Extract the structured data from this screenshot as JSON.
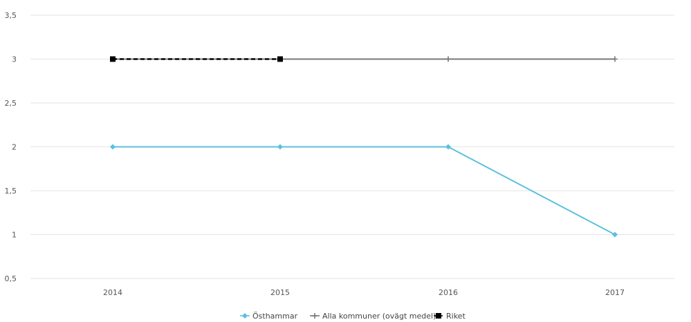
{
  "chart_data": {
    "type": "line",
    "categories": [
      "2014",
      "2015",
      "2016",
      "2017"
    ],
    "ylim": [
      0.5,
      3.5
    ],
    "yticks": [
      "3,5",
      "3",
      "2,5",
      "2",
      "1,5",
      "1",
      "0,5"
    ],
    "ytick_values": [
      3.5,
      3,
      2.5,
      2,
      1.5,
      1,
      0.5
    ],
    "grid": true,
    "legend_position": "bottom",
    "series": [
      {
        "name": "Östhammar",
        "values": [
          2,
          2,
          2,
          1
        ],
        "color": "#5bc0de",
        "marker": "diamond"
      },
      {
        "name": "Alla kommuner (ovägt medel)",
        "values": [
          3,
          3,
          3,
          3
        ],
        "color": "#777777",
        "marker": "plus"
      },
      {
        "name": "Riket",
        "values": [
          3,
          3,
          null,
          null
        ],
        "color": "#000000",
        "marker": "square",
        "dashed": true
      }
    ]
  }
}
